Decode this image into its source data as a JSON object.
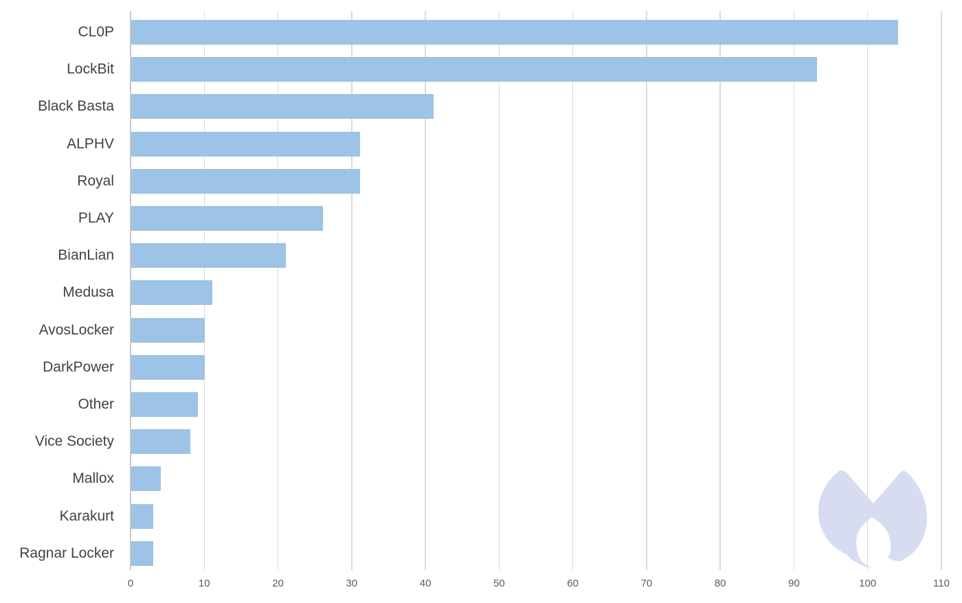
{
  "chart_data": {
    "type": "bar",
    "orientation": "horizontal",
    "title": "",
    "xlabel": "",
    "ylabel": "",
    "categories": [
      "CL0P",
      "LockBit",
      "Black Basta",
      "ALPHV",
      "Royal",
      "PLAY",
      "BianLian",
      "Medusa",
      "AvosLocker",
      "DarkPower",
      "Other",
      "Vice Society",
      "Mallox",
      "Karakurt",
      "Ragnar Locker"
    ],
    "values": [
      104,
      93,
      41,
      31,
      31,
      26,
      21,
      11,
      10,
      10,
      9,
      8,
      4,
      3,
      3
    ],
    "x_ticks": [
      0,
      10,
      20,
      30,
      40,
      50,
      60,
      70,
      80,
      90,
      100,
      110
    ],
    "xlim": [
      0,
      110
    ],
    "grid": "vertical-only",
    "legend": "none",
    "colors": {
      "bar_fill": "#9DC3E6",
      "gridline": "#D9D9D9",
      "axis_line": "#C8C8C8",
      "category_label_text": "#424242",
      "tick_label_text": "#595959",
      "watermark_fill": "#D8DCF1",
      "background": "#FFFFFF"
    },
    "watermark": {
      "icon": "malwarebytes-logo",
      "color": "#D8DCF1"
    }
  }
}
